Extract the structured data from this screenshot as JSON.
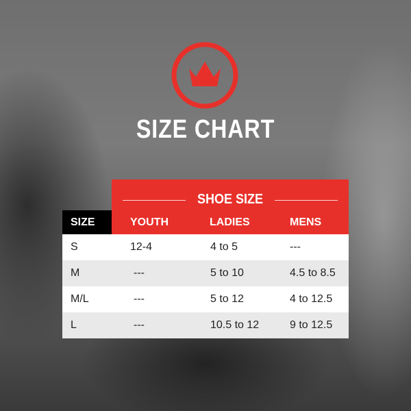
{
  "title": "SIZE CHART",
  "logo": {
    "icon": "crown-icon",
    "color": "#e8302a"
  },
  "table": {
    "group_header": "SHOE SIZE",
    "columns": [
      "SIZE",
      "YOUTH",
      "LADIES",
      "MENS"
    ],
    "rows": [
      [
        "S",
        "12-4",
        "4 to 5",
        "---"
      ],
      [
        "M",
        "---",
        "5 to 10",
        "4.5 to 8.5"
      ],
      [
        "M/L",
        "---",
        "5 to 12",
        "4 to 12.5"
      ],
      [
        "L",
        "---",
        "10.5 to 12",
        "9 to 12.5"
      ]
    ]
  },
  "colors": {
    "accent": "#e8302a",
    "row_alt": "#e9e9e9",
    "header_dark": "#000000"
  }
}
